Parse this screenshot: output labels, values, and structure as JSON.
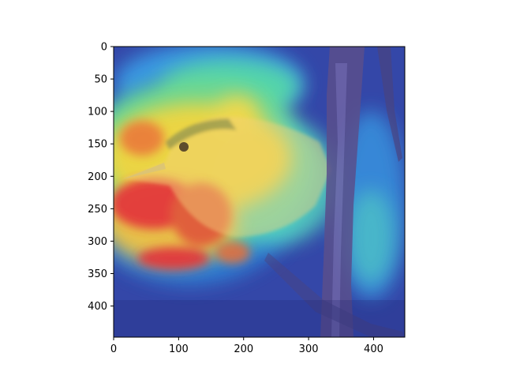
{
  "figure": {
    "kind": "heatmap-overlay",
    "description_visible": "bird photo with saliency colormap overlay",
    "colormap": "jet",
    "image_extent": {
      "x": [
        0,
        448
      ],
      "y": [
        0,
        448
      ]
    },
    "x_axis": {
      "ticks": [
        0,
        100,
        200,
        300,
        400
      ],
      "labels": [
        "0",
        "100",
        "200",
        "300",
        "400"
      ]
    },
    "y_axis": {
      "ticks": [
        0,
        50,
        100,
        150,
        200,
        250,
        300,
        350,
        400
      ],
      "labels": [
        "0",
        "50",
        "100",
        "150",
        "200",
        "250",
        "300",
        "350",
        "400"
      ]
    },
    "colors": {
      "frame": "#000000",
      "background": "#ffffff",
      "base_tint": "#3a3fb8",
      "hot": "#e3323a",
      "warm": "#f2d541",
      "mid": "#55d8a8",
      "cool": "#3aa0e8",
      "branch": "#5a4f8c",
      "bird_body": "#e6c66a"
    }
  }
}
